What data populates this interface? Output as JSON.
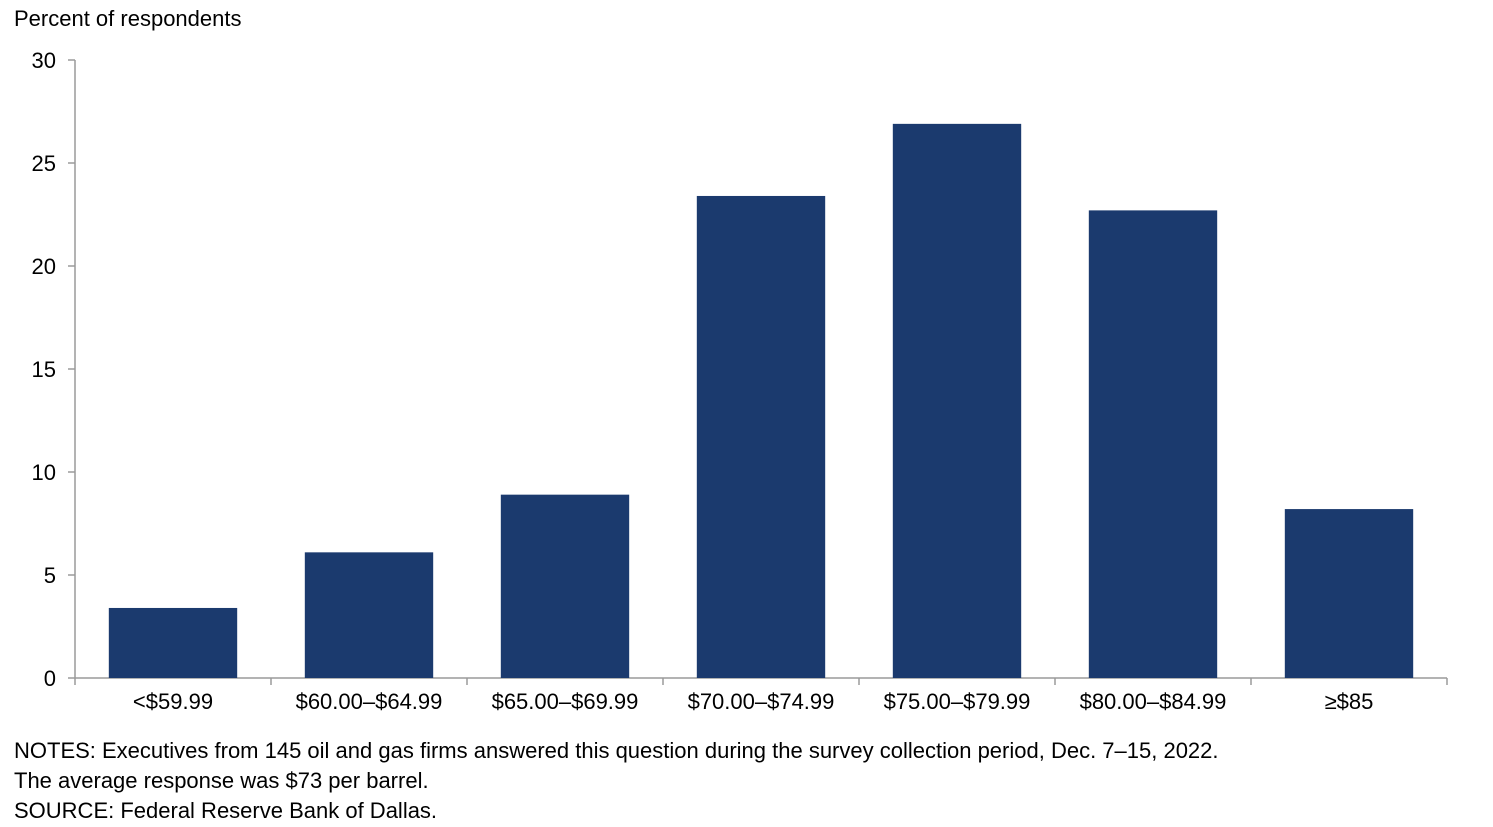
{
  "chart_data": {
    "type": "bar",
    "ylabel": "Percent of respondents",
    "categories": [
      "<$59.99",
      "$60.00–$64.99",
      "$65.00–$69.99",
      "$70.00–$74.99",
      "$75.00–$79.99",
      "$80.00–$84.99",
      "≥$85"
    ],
    "values": [
      3.4,
      6.1,
      8.9,
      23.4,
      26.9,
      22.7,
      8.2
    ],
    "ylim": [
      0,
      30
    ],
    "yticks": [
      0,
      5,
      10,
      15,
      20,
      25,
      30
    ],
    "bar_color": "#1b3a6e",
    "grid": false
  },
  "notes": {
    "line1": "NOTES: Executives from 145 oil and gas firms answered this question during the survey collection period, Dec. 7–15, 2022.",
    "line2": "The average response was $73 per barrel.",
    "source": "SOURCE: Federal Reserve Bank of Dallas."
  }
}
